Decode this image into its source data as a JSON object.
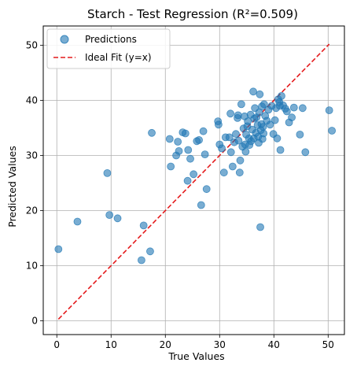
{
  "chart_data": {
    "type": "scatter",
    "title": "Starch - Test Regression (R²=0.509)",
    "xlabel": "True Values",
    "ylabel": "Predicted Values",
    "xlim": [
      -2.5,
      53.0
    ],
    "ylim": [
      -2.5,
      53.5
    ],
    "xticks": [
      0,
      10,
      20,
      30,
      40,
      50
    ],
    "yticks": [
      0,
      10,
      20,
      30,
      40,
      50
    ],
    "grid": true,
    "legend_position": "top-left",
    "colors": {
      "points": "#1f77b4",
      "ideal_fit": "#e41a1c"
    },
    "series": [
      {
        "name": "Predictions",
        "kind": "scatter",
        "points": [
          [
            0.3,
            13.0
          ],
          [
            3.8,
            18.0
          ],
          [
            9.3,
            26.8
          ],
          [
            9.7,
            19.2
          ],
          [
            11.2,
            18.6
          ],
          [
            15.6,
            11.0
          ],
          [
            16.0,
            17.3
          ],
          [
            17.2,
            12.6
          ],
          [
            17.5,
            34.1
          ],
          [
            20.8,
            33.0
          ],
          [
            21.0,
            28.0
          ],
          [
            22.0,
            30.0
          ],
          [
            22.3,
            32.5
          ],
          [
            22.5,
            30.8
          ],
          [
            23.2,
            34.2
          ],
          [
            23.7,
            34.0
          ],
          [
            24.1,
            25.4
          ],
          [
            24.2,
            31.0
          ],
          [
            24.6,
            29.4
          ],
          [
            25.2,
            26.6
          ],
          [
            25.8,
            32.6
          ],
          [
            26.2,
            32.8
          ],
          [
            26.6,
            21.0
          ],
          [
            27.0,
            34.4
          ],
          [
            27.3,
            30.2
          ],
          [
            27.6,
            23.9
          ],
          [
            29.7,
            36.2
          ],
          [
            29.8,
            35.6
          ],
          [
            30.0,
            32.0
          ],
          [
            30.4,
            31.3
          ],
          [
            30.8,
            26.9
          ],
          [
            31.1,
            33.3
          ],
          [
            31.8,
            33.3
          ],
          [
            32.0,
            37.6
          ],
          [
            32.1,
            30.6
          ],
          [
            32.4,
            28.0
          ],
          [
            32.7,
            32.4
          ],
          [
            33.0,
            33.9
          ],
          [
            33.3,
            36.8
          ],
          [
            33.4,
            37.3
          ],
          [
            33.5,
            32.7
          ],
          [
            33.7,
            26.9
          ],
          [
            33.8,
            29.1
          ],
          [
            34.0,
            39.3
          ],
          [
            34.2,
            31.6
          ],
          [
            34.4,
            34.9
          ],
          [
            34.6,
            37.1
          ],
          [
            34.7,
            32.0
          ],
          [
            34.8,
            30.7
          ],
          [
            34.9,
            33.8
          ],
          [
            35.1,
            35.3
          ],
          [
            35.2,
            36.2
          ],
          [
            35.4,
            33.1
          ],
          [
            35.5,
            31.9
          ],
          [
            35.7,
            37.4
          ],
          [
            35.8,
            32.6
          ],
          [
            36.0,
            34.7
          ],
          [
            36.2,
            41.6
          ],
          [
            36.3,
            33.1
          ],
          [
            36.4,
            36.7
          ],
          [
            36.5,
            38.6
          ],
          [
            36.7,
            34.1
          ],
          [
            36.8,
            36.9
          ],
          [
            37.0,
            35.5
          ],
          [
            37.1,
            33.4
          ],
          [
            37.2,
            32.3
          ],
          [
            37.3,
            37.8
          ],
          [
            37.4,
            41.1
          ],
          [
            37.5,
            17.0
          ],
          [
            37.6,
            34.6
          ],
          [
            37.7,
            35.7
          ],
          [
            37.8,
            38.9
          ],
          [
            37.9,
            33.0
          ],
          [
            38.0,
            35.2
          ],
          [
            38.1,
            34.0
          ],
          [
            38.2,
            39.3
          ],
          [
            38.4,
            37.2
          ],
          [
            38.7,
            36.3
          ],
          [
            39.0,
            38.3
          ],
          [
            39.3,
            35.6
          ],
          [
            39.6,
            39.0
          ],
          [
            39.9,
            33.9
          ],
          [
            40.2,
            36.4
          ],
          [
            40.4,
            38.6
          ],
          [
            40.6,
            33.1
          ],
          [
            40.8,
            40.2
          ],
          [
            41.0,
            39.7
          ],
          [
            41.1,
            39.0
          ],
          [
            41.2,
            31.0
          ],
          [
            41.4,
            40.8
          ],
          [
            41.7,
            39.1
          ],
          [
            42.1,
            38.5
          ],
          [
            42.4,
            38.0
          ],
          [
            42.8,
            36.0
          ],
          [
            43.3,
            36.9
          ],
          [
            43.7,
            38.7
          ],
          [
            44.8,
            33.8
          ],
          [
            45.3,
            38.6
          ],
          [
            45.8,
            30.6
          ],
          [
            50.2,
            38.2
          ],
          [
            50.7,
            34.5
          ]
        ]
      },
      {
        "name": "Ideal Fit (y=x)",
        "kind": "line",
        "style": "dashed",
        "points": [
          [
            0.3,
            0.3
          ],
          [
            50.2,
            50.2
          ]
        ]
      }
    ]
  }
}
